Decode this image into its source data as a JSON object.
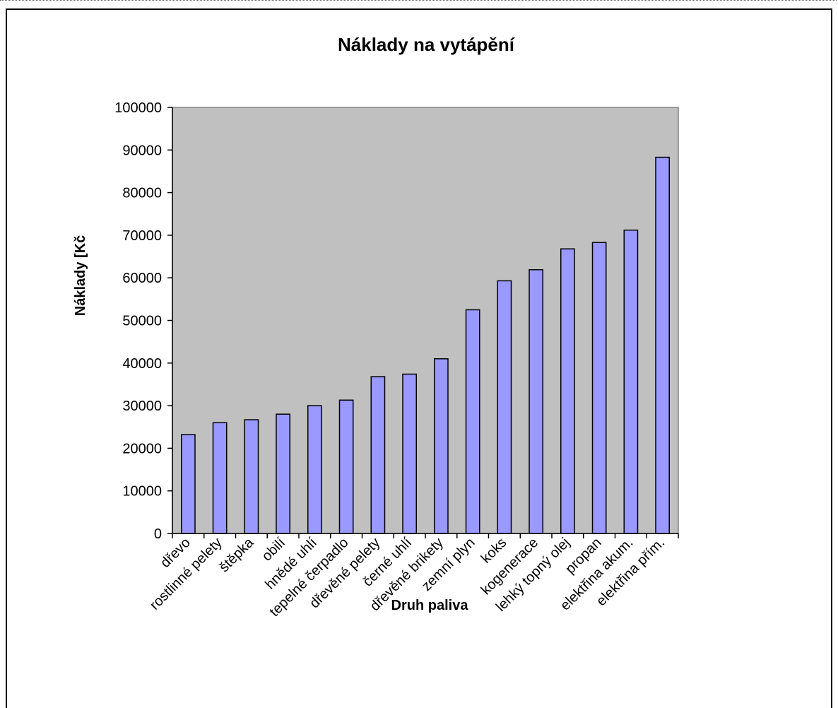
{
  "chart_data": {
    "type": "bar",
    "title": "Náklady na vytápění",
    "xlabel": "Druh paliva",
    "ylabel": "Náklady [Kč",
    "ylim": [
      0,
      100000
    ],
    "yticks": [
      0,
      10000,
      20000,
      30000,
      40000,
      50000,
      60000,
      70000,
      80000,
      90000,
      100000
    ],
    "categories": [
      "dřevo",
      "rostlinné pelety",
      "štěpka",
      "obilí",
      "hnědé uhlí",
      "tepelné čerpadlo",
      "dřevěné pelety",
      "černé uhlí",
      "dřevěné brikety",
      "zemní plyn",
      "koks",
      "kogenerace",
      "lehký topný olej",
      "propan",
      "elektřina akum.",
      "elektřina přím."
    ],
    "values": [
      23200,
      26000,
      26700,
      28000,
      30000,
      31300,
      36800,
      37400,
      41000,
      52500,
      59300,
      61900,
      66800,
      68300,
      71200,
      88300
    ],
    "grid": false,
    "legend": "none",
    "colors": {
      "bar_fill": "#9999ff",
      "bar_stroke": "#000000",
      "plot_background": "#c0c0c0",
      "plot_border": "#808080"
    }
  }
}
